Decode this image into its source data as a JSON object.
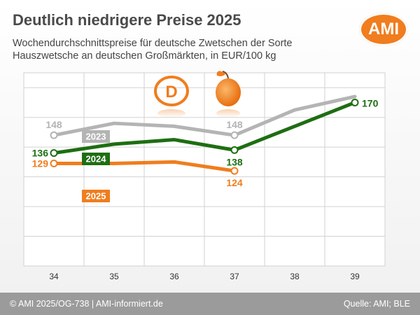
{
  "header": {
    "title": "Deutlich niedrigere Preise 2025",
    "subtitle": "Wochendurchschnittspreise für deutsche Zwetschen der Sorte Hauszwetsche an deutschen Großmärkten, in EUR/100 kg",
    "logo_text": "AMI",
    "country_badge": "D"
  },
  "footer": {
    "copyright": "© AMI 2025/OG-738 | AMI-informiert.de",
    "source": "Quelle: AMI; BLE"
  },
  "colors": {
    "2023": "#b4b4b4",
    "2024": "#1e6e12",
    "2025": "#f07d1e",
    "grid": "#d2d2d2"
  },
  "icons": {
    "fruit": "plum-icon",
    "country": "d-badge-icon"
  },
  "chart_data": {
    "type": "line",
    "x": [
      34,
      35,
      36,
      37,
      38,
      39
    ],
    "xlabel": "",
    "ylabel": "",
    "ylim": [
      60,
      190
    ],
    "grid": true,
    "series": [
      {
        "name": "2023",
        "values": [
          148,
          156,
          154,
          148,
          165,
          174
        ],
        "labeled": [
          {
            "x": 34,
            "value": 148
          },
          {
            "x": 37,
            "value": 148
          }
        ]
      },
      {
        "name": "2024",
        "values": [
          136,
          142,
          145,
          138,
          154,
          170
        ],
        "labeled": [
          {
            "x": 34,
            "value": 136
          },
          {
            "x": 37,
            "value": 138
          },
          {
            "x": 39,
            "value": 170
          }
        ]
      },
      {
        "name": "2025",
        "values": [
          129,
          129,
          130,
          124,
          null,
          null
        ],
        "labeled": [
          {
            "x": 34,
            "value": 129
          },
          {
            "x": 37,
            "value": 124
          }
        ]
      }
    ]
  }
}
